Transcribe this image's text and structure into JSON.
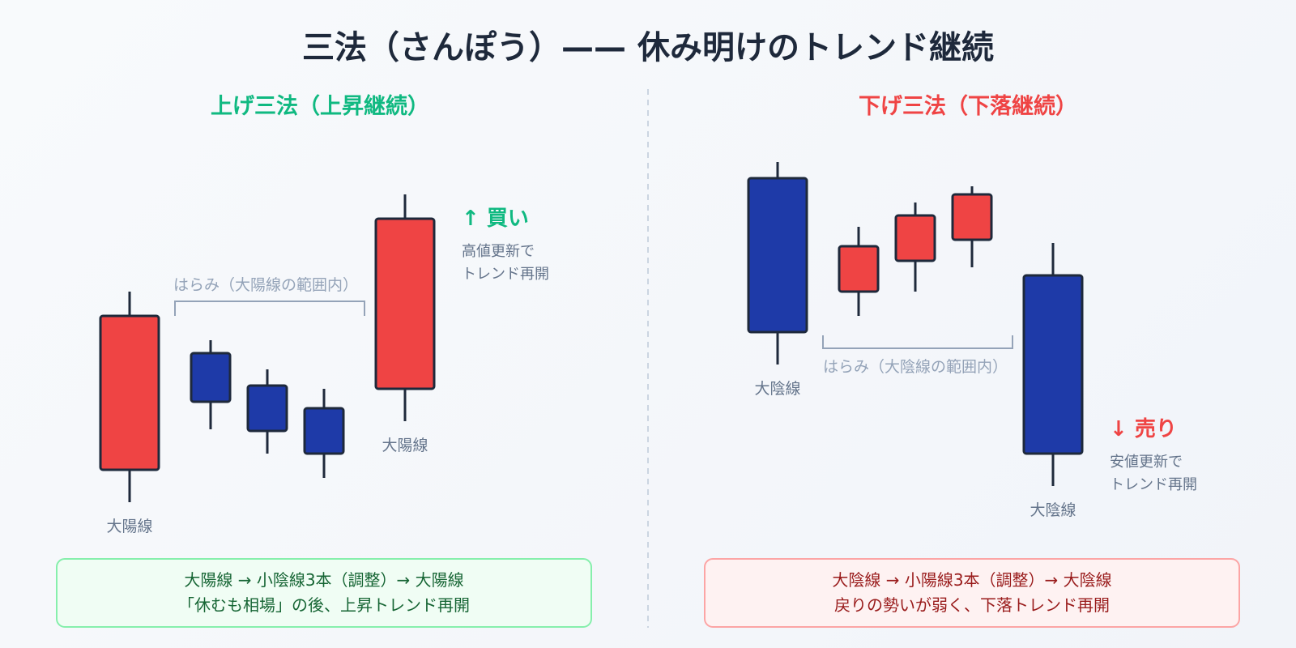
{
  "title": "三法（さんぽう）—— 休み明けのトレンド継続",
  "colors": {
    "bullish": "#ef4444",
    "bearish": "#1e3aa8",
    "outline": "#1e293b",
    "accent_up": "#10b981",
    "accent_down": "#ef4444",
    "bracket": "#94a3b8"
  },
  "panels": {
    "rising": {
      "heading": "上げ三法（上昇継続）",
      "harami_label": "はらみ（大陽線の範囲内）",
      "first_label": "大陽線",
      "last_label": "大陽線",
      "signal": "↑ 買い",
      "signal_desc": [
        "高値更新で",
        "トレンド再開"
      ],
      "summary": [
        "大陽線 → 小陰線3本（調整）→ 大陽線",
        "「休むも相場」の後、上昇トレンド再開"
      ]
    },
    "falling": {
      "heading": "下げ三法（下落継続）",
      "harami_label": "はらみ（大陰線の範囲内）",
      "first_label": "大陰線",
      "last_label": "大陰線",
      "signal": "↓ 売り",
      "signal_desc": [
        "安値更新で",
        "トレンド再開"
      ],
      "summary": [
        "大陰線 → 小陽線3本（調整）→ 大陰線",
        "戻りの勢いが弱く、下落トレンド再開"
      ]
    }
  }
}
